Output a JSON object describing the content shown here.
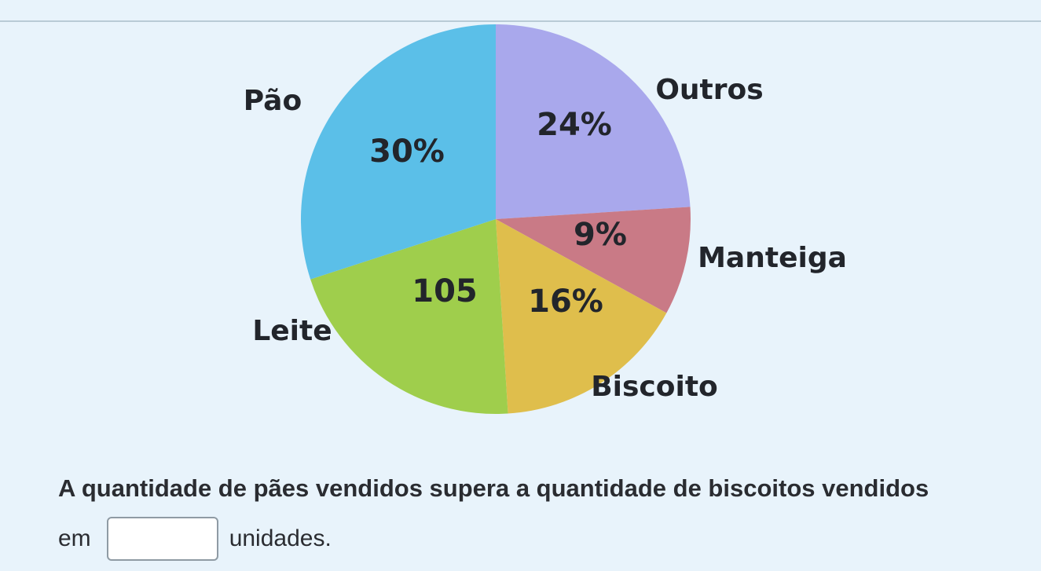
{
  "chart_data": {
    "type": "pie",
    "slices": [
      {
        "name": "Outros",
        "label": "24%",
        "value": 24,
        "color": "#a9a8ec"
      },
      {
        "name": "Manteiga",
        "label": "9%",
        "value": 9,
        "color": "#c97a86"
      },
      {
        "name": "Biscoito",
        "label": "16%",
        "value": 16,
        "color": "#dfbe4c"
      },
      {
        "name": "Leite",
        "label": "105",
        "value": 21,
        "color": "#9fce4c"
      },
      {
        "name": "Pão",
        "label": "30%",
        "value": 30,
        "color": "#5bbfe8"
      }
    ],
    "start_angle_deg": 0,
    "direction": "clockwise"
  },
  "question": {
    "text": "A quantidade de pães vendidos supera a quantidade de biscoitos vendidos",
    "prefix": "em",
    "suffix": "unidades.",
    "answer_value": ""
  }
}
